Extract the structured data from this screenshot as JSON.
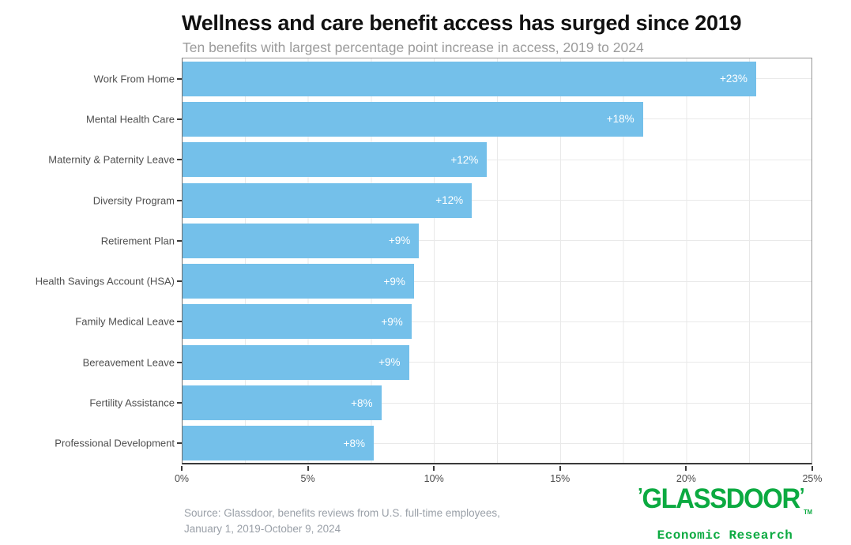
{
  "chart_data": {
    "type": "bar",
    "orientation": "horizontal",
    "title": "Wellness and care benefit access has surged since 2019",
    "subtitle": "Ten benefits with largest percentage point increase in access, 2019 to 2024",
    "categories": [
      "Work From Home",
      "Mental Health Care",
      "Maternity & Paternity Leave",
      "Diversity Program",
      "Retirement Plan",
      "Health Savings Account (HSA)",
      "Family Medical Leave",
      "Bereavement Leave",
      "Fertility Assistance",
      "Professional Development"
    ],
    "values": [
      22.8,
      18.3,
      12.1,
      11.5,
      9.4,
      9.2,
      9.1,
      9.0,
      7.9,
      7.6
    ],
    "bar_labels": [
      "+23%",
      "+18%",
      "+12%",
      "+12%",
      "+9%",
      "+9%",
      "+9%",
      "+9%",
      "+8%",
      "+8%"
    ],
    "x_ticks": [
      "0%",
      "5%",
      "10%",
      "15%",
      "20%",
      "25%"
    ],
    "xlim": [
      0,
      25
    ],
    "xlabel": "",
    "ylabel": "",
    "grid": "vertical gridlines every 2.5%, horizontal gridline at each category center",
    "legend": "none",
    "bar_color": "#74C0EA",
    "bar_label_color": "#ffffff"
  },
  "footer": {
    "source_line1": "Source: Glassdoor, benefits reviews from U.S. full-time employees,",
    "source_line2": "January 1, 2019-October 9, 2024"
  },
  "branding": {
    "left_quote": "’",
    "wordmark": "GLASSDOOR",
    "right_quote": "’",
    "trademark": "TM",
    "tagline": "Economic Research",
    "brand_green": "#0CAA41"
  }
}
